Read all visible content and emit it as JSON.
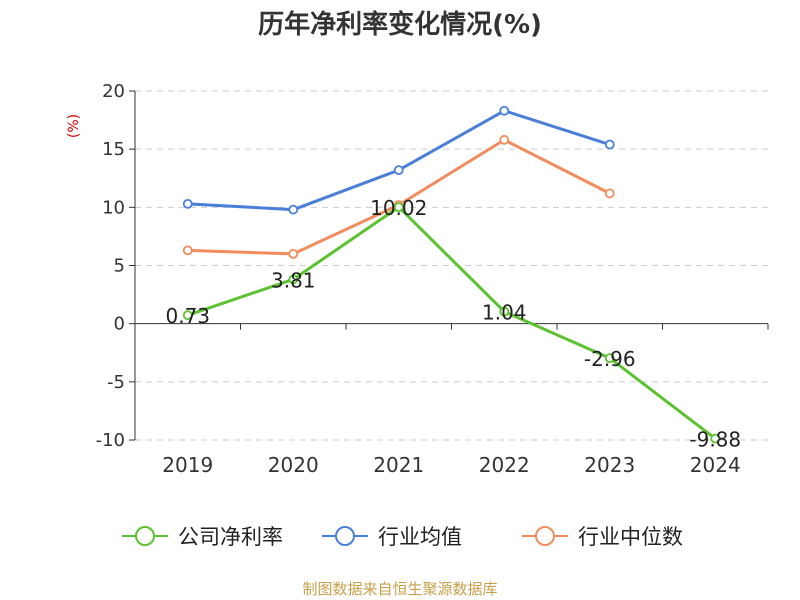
{
  "chart_data": {
    "type": "line",
    "title": "历年净利率变化情况(%)",
    "ylabel": "(%)",
    "categories": [
      "2019",
      "2020",
      "2021",
      "2022",
      "2023",
      "2024"
    ],
    "ylim": [
      -10,
      20
    ],
    "yticks": [
      -10,
      -5,
      0,
      5,
      10,
      15,
      20
    ],
    "grid": true,
    "legend_position": "bottom",
    "series": [
      {
        "name": "公司净利率",
        "color": "#5cc230",
        "values": [
          0.73,
          3.81,
          10.02,
          1.04,
          -2.96,
          -9.88
        ],
        "labels": [
          "0.73",
          "3.81",
          "10.02",
          "1.04",
          "-2.96",
          "-9.88"
        ]
      },
      {
        "name": "行业均值",
        "color": "#4a7fd8",
        "values": [
          10.3,
          9.8,
          13.2,
          18.3,
          15.4,
          null
        ]
      },
      {
        "name": "行业中位数",
        "color": "#f28c5c",
        "values": [
          6.3,
          6.0,
          10.2,
          15.8,
          11.2,
          null
        ]
      }
    ]
  },
  "source_text": "制图数据来自恒生聚源数据库",
  "colors": {
    "axis": "#333333",
    "grid": "#cccccc",
    "ylabel": "#d40000",
    "source": "#c8a04a"
  }
}
